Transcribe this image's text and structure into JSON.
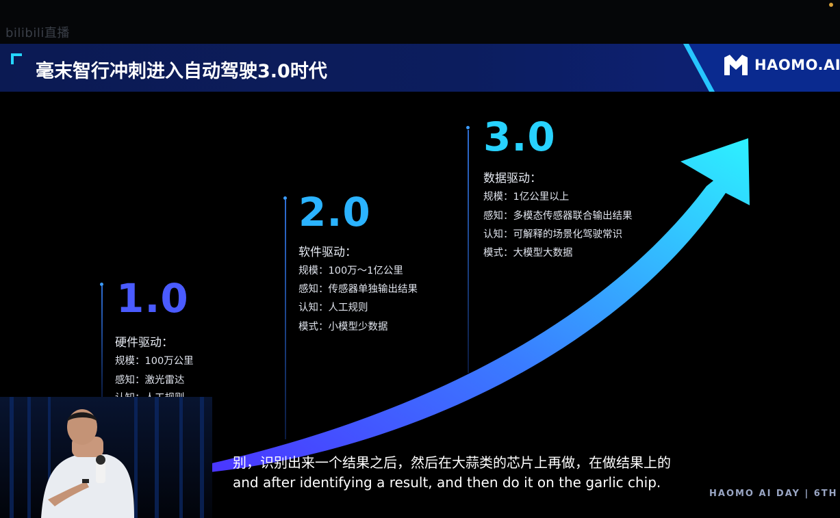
{
  "watermark": "bilibili直播",
  "header": {
    "title": "毫末智行冲刺进入自动驾驶3.0时代",
    "logo_text": "HAOMO.AI"
  },
  "stages": [
    {
      "version": "1.0",
      "drive": "硬件驱动：",
      "items": [
        "规模：100万公里",
        "感知：激光雷达",
        "认知：人工规则"
      ]
    },
    {
      "version": "2.0",
      "drive": "软件驱动：",
      "items": [
        "规模：100万～1亿公里",
        "感知：传感器单独输出结果",
        "认知：人工规则",
        "模式：小模型少数据"
      ]
    },
    {
      "version": "3.0",
      "drive": "数据驱动：",
      "items": [
        "规模：1亿公里以上",
        "感知：多模态传感器联合输出结果",
        "认知：可解释的场景化驾驶常识",
        "模式：大模型大数据"
      ]
    }
  ],
  "subtitle": {
    "cn": "别，识别出来一个结果之后，然后在大蒜类的芯片上再做，在做结果上的",
    "en": "and after identifying a result, and then do it on the garlic chip."
  },
  "event_label": "HAOMO AI DAY | 6TH",
  "colors": {
    "accent_cyan": "#25d6ff",
    "header_bg": "#0b1a53",
    "v1": "#4a5bff",
    "v2": "#2bb3ff",
    "v3": "#28d2ff"
  }
}
